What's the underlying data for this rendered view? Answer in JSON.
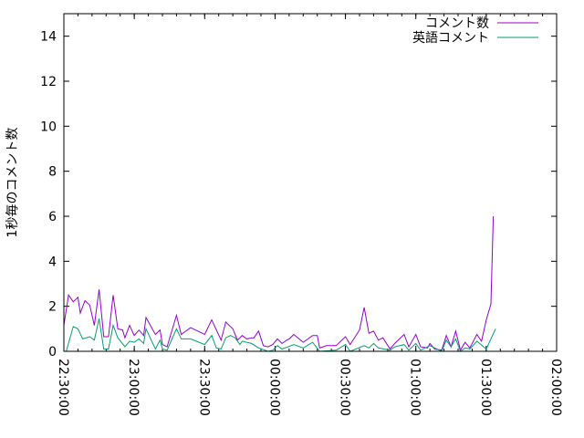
{
  "chart_data": {
    "type": "line",
    "title": "",
    "xlabel": "",
    "ylabel": "1秒毎のコメント数",
    "xlim": [
      "22:30:00",
      "02:00:00"
    ],
    "ylim": [
      0,
      15
    ],
    "x_ticks": [
      "22:30:00",
      "23:00:00",
      "23:30:00",
      "00:00:00",
      "00:30:00",
      "01:00:00",
      "01:30:00",
      "02:00:00"
    ],
    "y_ticks": [
      "0",
      "2",
      "4",
      "6",
      "8",
      "10",
      "12",
      "14"
    ],
    "grid": false,
    "legend_position": "top-right",
    "series": [
      {
        "name": "コメント数",
        "color": "#9400d3",
        "x": [
          "22:30:00",
          "22:32:00",
          "22:34:00",
          "22:36:00",
          "22:37:00",
          "22:39:00",
          "22:41:00",
          "22:43:00",
          "22:44:00",
          "22:45:00",
          "22:47:00",
          "22:49:00",
          "22:51:00",
          "22:53:00",
          "22:55:00",
          "22:56:00",
          "22:58:00",
          "23:00:00",
          "23:02:00",
          "23:04:00",
          "23:05:00",
          "23:09:00",
          "23:11:00",
          "23:12:00",
          "23:14:00",
          "23:18:00",
          "23:20:00",
          "23:24:00",
          "23:30:00",
          "23:33:00",
          "23:37:00",
          "23:39:00",
          "23:42:00",
          "23:44:00",
          "23:46:00",
          "23:48:00",
          "23:50:00",
          "23:51:00",
          "23:53:00",
          "23:55:00",
          "23:57:00",
          "23:59:00",
          "00:01:00",
          "00:03:00",
          "00:05:00",
          "00:06:00",
          "00:08:00",
          "00:12:00",
          "00:16:00",
          "00:18:00",
          "00:19:00",
          "00:22:00",
          "00:26:00",
          "00:30:00",
          "00:32:00",
          "00:36:00",
          "00:38:00",
          "00:40:00",
          "00:42:00",
          "00:44:00",
          "00:46:00",
          "00:49:00",
          "00:51:00",
          "00:55:00",
          "00:57:00",
          "01:00:00",
          "01:02:00",
          "01:05:00",
          "01:06:00",
          "01:08:00",
          "01:11:00",
          "01:13:00",
          "01:15:00",
          "01:17:00",
          "01:19:00",
          "01:21:00",
          "01:23:00",
          "01:26:00",
          "01:28:00",
          "01:30:00",
          "01:32:00",
          "01:33:00"
        ],
        "values": [
          1.15,
          2.5,
          2.2,
          2.4,
          1.7,
          2.25,
          2.05,
          1.15,
          1.95,
          2.75,
          0.65,
          0.65,
          2.5,
          1.0,
          0.95,
          0.6,
          1.15,
          0.7,
          0.95,
          0.7,
          1.5,
          0.75,
          0.95,
          0.3,
          0.2,
          1.6,
          0.75,
          1.05,
          0.75,
          1.4,
          0.5,
          1.3,
          1.0,
          0.5,
          0.7,
          0.55,
          0.6,
          0.6,
          0.9,
          0.25,
          0.2,
          0.3,
          0.55,
          0.35,
          0.5,
          0.55,
          0.75,
          0.4,
          0.7,
          0.7,
          0.15,
          0.25,
          0.25,
          0.65,
          0.3,
          0.95,
          1.95,
          0.8,
          0.9,
          0.5,
          0.6,
          0.1,
          0.35,
          0.75,
          0.2,
          0.75,
          0.2,
          0.15,
          0.35,
          0.1,
          0.05,
          0.7,
          0.2,
          0.9,
          0.05,
          0.4,
          0.15,
          0.75,
          0.45,
          1.4,
          2.1,
          6.0
        ]
      },
      {
        "name": "英語コメント",
        "color": "#009e73",
        "x": [
          "22:31:00",
          "22:34:00",
          "22:36:00",
          "22:38:00",
          "22:41:00",
          "22:43:00",
          "22:45:00",
          "22:47:00",
          "22:49:00",
          "22:51:00",
          "22:53:00",
          "22:56:00",
          "22:58:00",
          "23:00:00",
          "23:02:00",
          "23:04:00",
          "23:05:00",
          "23:09:00",
          "23:11:00",
          "23:12:00",
          "23:14:00",
          "23:18:00",
          "23:20:00",
          "23:24:00",
          "23:30:00",
          "23:33:00",
          "23:35:00",
          "23:37:00",
          "23:39:00",
          "23:41:00",
          "23:43:00",
          "23:45:00",
          "23:46:00",
          "23:50:00",
          "23:53:00",
          "23:57:00",
          "23:59:00",
          "00:01:00",
          "00:03:00",
          "00:08:00",
          "00:12:00",
          "00:16:00",
          "00:19:00",
          "00:26:00",
          "00:30:00",
          "00:32:00",
          "00:38:00",
          "00:40:00",
          "00:42:00",
          "00:44:00",
          "00:49:00",
          "00:51:00",
          "00:55:00",
          "00:57:00",
          "01:00:00",
          "01:02:00",
          "01:06:00",
          "01:11:00",
          "01:13:00",
          "01:15:00",
          "01:17:00",
          "01:19:00",
          "01:21:00",
          "01:23:00",
          "01:26:00",
          "01:30:00",
          "01:34:00"
        ],
        "values": [
          0,
          1.1,
          1.0,
          0.55,
          0.65,
          0.5,
          1.45,
          0.1,
          0.1,
          1.15,
          0.6,
          0.2,
          0.45,
          0.4,
          0.55,
          0.35,
          1.0,
          0.1,
          0.5,
          0.1,
          0.05,
          1.0,
          0.55,
          0.55,
          0.3,
          0.7,
          0.15,
          0.1,
          0.6,
          0.7,
          0.6,
          0.3,
          0.45,
          0.35,
          0.15,
          0,
          0.05,
          0.25,
          0.1,
          0.3,
          0.15,
          0.4,
          0,
          0.05,
          0.3,
          0,
          0.25,
          0.15,
          0.35,
          0.15,
          0.05,
          0.2,
          0.3,
          0.05,
          0.35,
          0.05,
          0.25,
          0,
          0.5,
          0.2,
          0.55,
          0,
          0.15,
          0.1,
          0.45,
          0.1,
          1.0
        ]
      }
    ]
  }
}
